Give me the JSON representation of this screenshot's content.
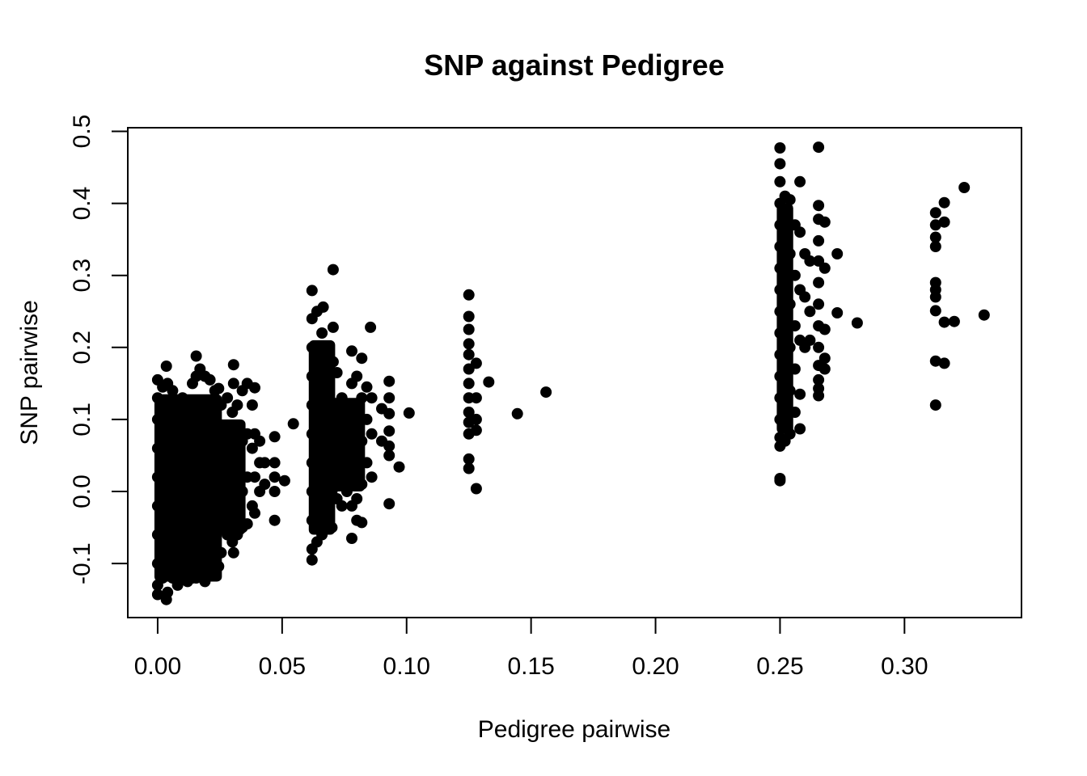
{
  "chart_data": {
    "type": "scatter",
    "title": "SNP against Pedigree",
    "xlabel": "Pedigree pairwise",
    "ylabel": "SNP pairwise",
    "xlim": [
      -0.012,
      0.347
    ],
    "ylim": [
      -0.175,
      0.505
    ],
    "x_ticks": [
      "0.00",
      "0.05",
      "0.10",
      "0.15",
      "0.20",
      "0.25",
      "0.30"
    ],
    "y_ticks": [
      "-0.1",
      "0.0",
      "0.1",
      "0.2",
      "0.3",
      "0.4",
      "0.5"
    ],
    "grid": false,
    "legend": "none",
    "marker_color": "#000000",
    "series": [
      {
        "points": [
          [
            0.0,
            0.155
          ],
          [
            0.0,
            0.13
          ],
          [
            0.0,
            0.1
          ],
          [
            0.0,
            0.06
          ],
          [
            0.0,
            0.02
          ],
          [
            0.0,
            -0.02
          ],
          [
            0.0,
            -0.06
          ],
          [
            0.0,
            -0.1
          ],
          [
            0.0,
            -0.13
          ],
          [
            0.0,
            -0.143
          ],
          [
            0.002,
            0.145
          ],
          [
            0.002,
            0.08
          ],
          [
            0.002,
            0.01
          ],
          [
            0.002,
            -0.05
          ],
          [
            0.002,
            -0.12
          ],
          [
            0.004,
            0.15
          ],
          [
            0.004,
            0.09
          ],
          [
            0.004,
            0.03
          ],
          [
            0.004,
            -0.04
          ],
          [
            0.004,
            -0.11
          ],
          [
            0.004,
            -0.14
          ],
          [
            0.0035,
            0.174
          ],
          [
            0.0035,
            -0.15
          ],
          [
            0.006,
            0.14
          ],
          [
            0.006,
            0.07
          ],
          [
            0.006,
            0.0
          ],
          [
            0.006,
            -0.07
          ],
          [
            0.006,
            -0.12
          ],
          [
            0.008,
            0.125
          ],
          [
            0.008,
            0.06
          ],
          [
            0.008,
            -0.01
          ],
          [
            0.008,
            -0.08
          ],
          [
            0.008,
            -0.13
          ],
          [
            0.01,
            0.13
          ],
          [
            0.01,
            0.05
          ],
          [
            0.01,
            -0.03
          ],
          [
            0.01,
            -0.1
          ],
          [
            0.012,
            0.12
          ],
          [
            0.012,
            0.04
          ],
          [
            0.012,
            -0.04
          ],
          [
            0.012,
            -0.11
          ],
          [
            0.012,
            -0.125
          ],
          [
            0.014,
            0.15
          ],
          [
            0.014,
            0.08
          ],
          [
            0.014,
            0.0
          ],
          [
            0.014,
            -0.07
          ],
          [
            0.014,
            -0.12
          ],
          [
            0.0155,
            0.188
          ],
          [
            0.0155,
            0.16
          ],
          [
            0.0155,
            0.1
          ],
          [
            0.0155,
            0.02
          ],
          [
            0.0155,
            -0.06
          ],
          [
            0.0155,
            -0.12
          ],
          [
            0.017,
            0.17
          ],
          [
            0.017,
            0.11
          ],
          [
            0.017,
            0.04
          ],
          [
            0.017,
            -0.04
          ],
          [
            0.017,
            -0.1
          ],
          [
            0.019,
            0.16
          ],
          [
            0.019,
            0.09
          ],
          [
            0.019,
            0.01
          ],
          [
            0.019,
            -0.06
          ],
          [
            0.019,
            -0.125
          ],
          [
            0.021,
            0.155
          ],
          [
            0.021,
            0.08
          ],
          [
            0.021,
            0.0
          ],
          [
            0.021,
            -0.08
          ],
          [
            0.023,
            0.14
          ],
          [
            0.023,
            0.07
          ],
          [
            0.023,
            -0.01
          ],
          [
            0.023,
            -0.09
          ],
          [
            0.0245,
            0.143
          ],
          [
            0.0245,
            0.06
          ],
          [
            0.0245,
            -0.02
          ],
          [
            0.0245,
            -0.104
          ],
          [
            0.0255,
            0.12
          ],
          [
            0.0255,
            0.03
          ],
          [
            0.0255,
            -0.05
          ],
          [
            0.0255,
            -0.085
          ],
          [
            0.028,
            0.13
          ],
          [
            0.028,
            0.04
          ],
          [
            0.028,
            -0.03
          ],
          [
            0.028,
            -0.06
          ],
          [
            0.03,
            0.11
          ],
          [
            0.03,
            0.05
          ],
          [
            0.03,
            -0.04
          ],
          [
            0.03,
            -0.07
          ],
          [
            0.0305,
            0.176
          ],
          [
            0.0305,
            0.15
          ],
          [
            0.0305,
            -0.085
          ],
          [
            0.032,
            0.12
          ],
          [
            0.032,
            0.06
          ],
          [
            0.032,
            -0.01
          ],
          [
            0.032,
            -0.06
          ],
          [
            0.034,
            0.14
          ],
          [
            0.034,
            0.07
          ],
          [
            0.034,
            0.0
          ],
          [
            0.034,
            -0.05
          ],
          [
            0.036,
            0.15
          ],
          [
            0.036,
            0.08
          ],
          [
            0.036,
            0.02
          ],
          [
            0.036,
            -0.045
          ],
          [
            0.038,
            0.12
          ],
          [
            0.038,
            0.06
          ],
          [
            0.038,
            -0.02
          ],
          [
            0.039,
            0.144
          ],
          [
            0.039,
            0.08
          ],
          [
            0.039,
            0.02
          ],
          [
            0.039,
            -0.03
          ],
          [
            0.041,
            0.07
          ],
          [
            0.041,
            0.04
          ],
          [
            0.041,
            0.0
          ],
          [
            0.043,
            0.04
          ],
          [
            0.043,
            0.01
          ],
          [
            0.047,
            0.076
          ],
          [
            0.047,
            0.04
          ],
          [
            0.047,
            0.02
          ],
          [
            0.047,
            0.0
          ],
          [
            0.047,
            -0.04
          ],
          [
            0.051,
            0.015
          ],
          [
            0.0545,
            0.094
          ],
          [
            0.062,
            0.279
          ],
          [
            0.062,
            0.24
          ],
          [
            0.062,
            0.2
          ],
          [
            0.062,
            0.16
          ],
          [
            0.062,
            0.12
          ],
          [
            0.062,
            0.08
          ],
          [
            0.062,
            0.04
          ],
          [
            0.062,
            0.0
          ],
          [
            0.062,
            -0.04
          ],
          [
            0.062,
            -0.08
          ],
          [
            0.062,
            -0.095
          ],
          [
            0.064,
            0.25
          ],
          [
            0.064,
            0.19
          ],
          [
            0.064,
            0.13
          ],
          [
            0.064,
            0.07
          ],
          [
            0.064,
            0.01
          ],
          [
            0.064,
            -0.05
          ],
          [
            0.064,
            -0.07
          ],
          [
            0.066,
            0.22
          ],
          [
            0.066,
            0.15
          ],
          [
            0.066,
            0.09
          ],
          [
            0.066,
            0.03
          ],
          [
            0.066,
            -0.03
          ],
          [
            0.066,
            -0.06
          ],
          [
            0.0665,
            0.256
          ],
          [
            0.068,
            0.2
          ],
          [
            0.068,
            0.14
          ],
          [
            0.068,
            0.08
          ],
          [
            0.068,
            0.02
          ],
          [
            0.068,
            -0.05
          ],
          [
            0.0705,
            0.308
          ],
          [
            0.0705,
            0.228
          ],
          [
            0.0705,
            0.18
          ],
          [
            0.07,
            0.12
          ],
          [
            0.07,
            0.06
          ],
          [
            0.07,
            0.0
          ],
          [
            0.07,
            -0.05
          ],
          [
            0.072,
            0.165
          ],
          [
            0.072,
            0.11
          ],
          [
            0.072,
            0.05
          ],
          [
            0.072,
            -0.01
          ],
          [
            0.074,
            0.13
          ],
          [
            0.074,
            0.07
          ],
          [
            0.074,
            0.01
          ],
          [
            0.074,
            -0.02
          ],
          [
            0.076,
            0.12
          ],
          [
            0.076,
            0.06
          ],
          [
            0.076,
            0.0
          ],
          [
            0.078,
            0.195
          ],
          [
            0.078,
            0.15
          ],
          [
            0.078,
            0.1
          ],
          [
            0.078,
            0.04
          ],
          [
            0.078,
            -0.02
          ],
          [
            0.078,
            -0.065
          ],
          [
            0.08,
            0.16
          ],
          [
            0.08,
            0.11
          ],
          [
            0.08,
            0.05
          ],
          [
            0.08,
            -0.01
          ],
          [
            0.08,
            -0.04
          ],
          [
            0.082,
            0.185
          ],
          [
            0.082,
            0.13
          ],
          [
            0.082,
            0.07
          ],
          [
            0.082,
            0.01
          ],
          [
            0.082,
            -0.043
          ],
          [
            0.084,
            0.145
          ],
          [
            0.084,
            0.1
          ],
          [
            0.084,
            0.04
          ],
          [
            0.0855,
            0.228
          ],
          [
            0.086,
            0.13
          ],
          [
            0.086,
            0.08
          ],
          [
            0.086,
            0.02
          ],
          [
            0.09,
            0.115
          ],
          [
            0.09,
            0.07
          ],
          [
            0.093,
            0.153
          ],
          [
            0.093,
            0.13
          ],
          [
            0.093,
            0.108
          ],
          [
            0.093,
            0.084
          ],
          [
            0.093,
            0.063
          ],
          [
            0.093,
            0.05
          ],
          [
            0.093,
            -0.017
          ],
          [
            0.097,
            0.034
          ],
          [
            0.101,
            0.109
          ],
          [
            0.125,
            0.273
          ],
          [
            0.125,
            0.243
          ],
          [
            0.125,
            0.225
          ],
          [
            0.125,
            0.205
          ],
          [
            0.125,
            0.19
          ],
          [
            0.125,
            0.17
          ],
          [
            0.125,
            0.15
          ],
          [
            0.125,
            0.13
          ],
          [
            0.125,
            0.11
          ],
          [
            0.125,
            0.096
          ],
          [
            0.125,
            0.08
          ],
          [
            0.125,
            0.045
          ],
          [
            0.125,
            0.032
          ],
          [
            0.128,
            0.178
          ],
          [
            0.128,
            0.13
          ],
          [
            0.128,
            0.1
          ],
          [
            0.128,
            0.085
          ],
          [
            0.128,
            0.004
          ],
          [
            0.133,
            0.152
          ],
          [
            0.1445,
            0.108
          ],
          [
            0.156,
            0.138
          ],
          [
            0.25,
            0.477
          ],
          [
            0.25,
            0.455
          ],
          [
            0.25,
            0.43
          ],
          [
            0.25,
            0.4
          ],
          [
            0.25,
            0.37
          ],
          [
            0.25,
            0.34
          ],
          [
            0.25,
            0.31
          ],
          [
            0.25,
            0.28
          ],
          [
            0.25,
            0.25
          ],
          [
            0.25,
            0.22
          ],
          [
            0.25,
            0.19
          ],
          [
            0.25,
            0.16
          ],
          [
            0.25,
            0.13
          ],
          [
            0.25,
            0.1
          ],
          [
            0.25,
            0.075
          ],
          [
            0.25,
            0.063
          ],
          [
            0.25,
            0.018
          ],
          [
            0.25,
            0.015
          ],
          [
            0.252,
            0.41
          ],
          [
            0.252,
            0.36
          ],
          [
            0.252,
            0.3
          ],
          [
            0.252,
            0.24
          ],
          [
            0.252,
            0.18
          ],
          [
            0.252,
            0.12
          ],
          [
            0.252,
            0.07
          ],
          [
            0.254,
            0.405
          ],
          [
            0.254,
            0.33
          ],
          [
            0.254,
            0.26
          ],
          [
            0.254,
            0.2
          ],
          [
            0.254,
            0.14
          ],
          [
            0.254,
            0.08
          ],
          [
            0.256,
            0.37
          ],
          [
            0.256,
            0.3
          ],
          [
            0.256,
            0.23
          ],
          [
            0.256,
            0.17
          ],
          [
            0.256,
            0.11
          ],
          [
            0.258,
            0.43
          ],
          [
            0.258,
            0.36
          ],
          [
            0.258,
            0.28
          ],
          [
            0.258,
            0.21
          ],
          [
            0.258,
            0.135
          ],
          [
            0.258,
            0.087
          ],
          [
            0.26,
            0.33
          ],
          [
            0.26,
            0.27
          ],
          [
            0.26,
            0.2
          ],
          [
            0.262,
            0.32
          ],
          [
            0.262,
            0.25
          ],
          [
            0.262,
            0.21
          ],
          [
            0.2655,
            0.478
          ],
          [
            0.2655,
            0.397
          ],
          [
            0.2655,
            0.378
          ],
          [
            0.2655,
            0.348
          ],
          [
            0.2655,
            0.32
          ],
          [
            0.2655,
            0.29
          ],
          [
            0.2655,
            0.26
          ],
          [
            0.2655,
            0.23
          ],
          [
            0.2655,
            0.2
          ],
          [
            0.2655,
            0.175
          ],
          [
            0.2655,
            0.155
          ],
          [
            0.2655,
            0.143
          ],
          [
            0.2655,
            0.133
          ],
          [
            0.268,
            0.374
          ],
          [
            0.268,
            0.31
          ],
          [
            0.268,
            0.225
          ],
          [
            0.268,
            0.185
          ],
          [
            0.268,
            0.17
          ],
          [
            0.273,
            0.33
          ],
          [
            0.273,
            0.248
          ],
          [
            0.281,
            0.234
          ],
          [
            0.3125,
            0.387
          ],
          [
            0.3125,
            0.37
          ],
          [
            0.3125,
            0.353
          ],
          [
            0.3125,
            0.34
          ],
          [
            0.3125,
            0.29
          ],
          [
            0.3125,
            0.28
          ],
          [
            0.3125,
            0.27
          ],
          [
            0.3125,
            0.251
          ],
          [
            0.3125,
            0.181
          ],
          [
            0.3125,
            0.12
          ],
          [
            0.316,
            0.401
          ],
          [
            0.316,
            0.374
          ],
          [
            0.316,
            0.235
          ],
          [
            0.316,
            0.178
          ],
          [
            0.32,
            0.236
          ],
          [
            0.324,
            0.422
          ],
          [
            0.332,
            0.245
          ]
        ]
      }
    ]
  }
}
